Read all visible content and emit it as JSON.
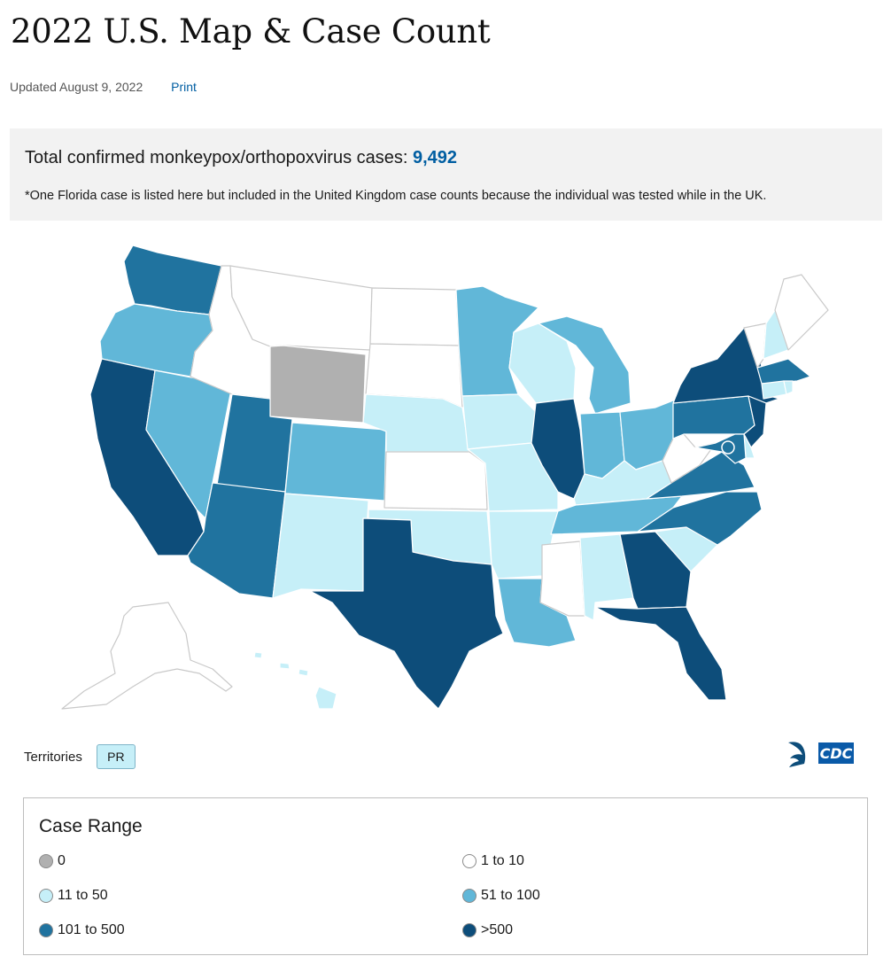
{
  "page": {
    "title": "2022 U.S. Map & Case Count",
    "updated": "Updated August 9, 2022",
    "print_label": "Print"
  },
  "summary": {
    "total_label": "Total confirmed monkeypox/orthopoxvirus cases:",
    "total_count": "9,492",
    "footnote": "*One Florida case is listed here but included in the United Kingdom case counts because the individual was tested while in the UK."
  },
  "map": {
    "states": [
      {
        "abbr": "WA",
        "range": "101 to 500"
      },
      {
        "abbr": "OR",
        "range": "51 to 100"
      },
      {
        "abbr": "CA",
        "range": ">500"
      },
      {
        "abbr": "NV",
        "range": "51 to 100"
      },
      {
        "abbr": "ID",
        "range": "1 to 10"
      },
      {
        "abbr": "MT",
        "range": "1 to 10"
      },
      {
        "abbr": "WY",
        "range": "0"
      },
      {
        "abbr": "UT",
        "range": "101 to 500"
      },
      {
        "abbr": "AZ",
        "range": "101 to 500"
      },
      {
        "abbr": "CO",
        "range": "51 to 100"
      },
      {
        "abbr": "NM",
        "range": "11 to 50"
      },
      {
        "abbr": "ND",
        "range": "1 to 10"
      },
      {
        "abbr": "SD",
        "range": "1 to 10"
      },
      {
        "abbr": "NE",
        "range": "11 to 50"
      },
      {
        "abbr": "KS",
        "range": "1 to 10"
      },
      {
        "abbr": "OK",
        "range": "11 to 50"
      },
      {
        "abbr": "TX",
        "range": ">500"
      },
      {
        "abbr": "MN",
        "range": "51 to 100"
      },
      {
        "abbr": "IA",
        "range": "11 to 50"
      },
      {
        "abbr": "MO",
        "range": "11 to 50"
      },
      {
        "abbr": "AR",
        "range": "11 to 50"
      },
      {
        "abbr": "LA",
        "range": "51 to 100"
      },
      {
        "abbr": "WI",
        "range": "11 to 50"
      },
      {
        "abbr": "IL",
        "range": ">500"
      },
      {
        "abbr": "MI",
        "range": "51 to 100"
      },
      {
        "abbr": "IN",
        "range": "51 to 100"
      },
      {
        "abbr": "OH",
        "range": "51 to 100"
      },
      {
        "abbr": "KY",
        "range": "11 to 50"
      },
      {
        "abbr": "TN",
        "range": "51 to 100"
      },
      {
        "abbr": "MS",
        "range": "1 to 10"
      },
      {
        "abbr": "AL",
        "range": "11 to 50"
      },
      {
        "abbr": "GA",
        "range": ">500"
      },
      {
        "abbr": "FL",
        "range": ">500"
      },
      {
        "abbr": "SC",
        "range": "11 to 50"
      },
      {
        "abbr": "NC",
        "range": "101 to 500"
      },
      {
        "abbr": "VA",
        "range": "101 to 500"
      },
      {
        "abbr": "WV",
        "range": "1 to 10"
      },
      {
        "abbr": "PA",
        "range": "101 to 500"
      },
      {
        "abbr": "NY",
        "range": ">500"
      },
      {
        "abbr": "NJ",
        "range": ">500"
      },
      {
        "abbr": "DE",
        "range": "11 to 50"
      },
      {
        "abbr": "MD",
        "range": "101 to 500"
      },
      {
        "abbr": "DC",
        "range": "101 to 500"
      },
      {
        "abbr": "CT",
        "range": "11 to 50"
      },
      {
        "abbr": "RI",
        "range": "11 to 50"
      },
      {
        "abbr": "MA",
        "range": "101 to 500"
      },
      {
        "abbr": "VT",
        "range": "1 to 10"
      },
      {
        "abbr": "NH",
        "range": "11 to 50"
      },
      {
        "abbr": "ME",
        "range": "1 to 10"
      },
      {
        "abbr": "AK",
        "range": "1 to 10"
      },
      {
        "abbr": "HI",
        "range": "11 to 50"
      }
    ]
  },
  "territories": {
    "label": "Territories",
    "items": [
      {
        "abbr": "PR",
        "range": "11 to 50"
      }
    ]
  },
  "legend": {
    "title": "Case Range",
    "items": [
      {
        "label": "0",
        "color": "#b0b0b0"
      },
      {
        "label": "1 to 10",
        "color": "#ffffff"
      },
      {
        "label": "11 to 50",
        "color": "#c6eff8"
      },
      {
        "label": "51 to 100",
        "color": "#61b7d8"
      },
      {
        "label": "101 to 500",
        "color": "#20739f"
      },
      {
        "label": ">500",
        "color": "#0d4d7a"
      }
    ]
  },
  "logo": {
    "text": "CDC",
    "icon": "hhs-eagle-icon"
  }
}
